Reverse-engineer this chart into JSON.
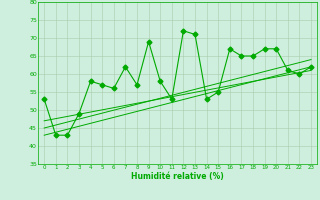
{
  "title": "",
  "xlabel": "Humidité relative (%)",
  "ylabel": "",
  "xlim": [
    -0.5,
    23.5
  ],
  "ylim": [
    35,
    80
  ],
  "yticks": [
    35,
    40,
    45,
    50,
    55,
    60,
    65,
    70,
    75,
    80
  ],
  "xticks": [
    0,
    1,
    2,
    3,
    4,
    5,
    6,
    7,
    8,
    9,
    10,
    11,
    12,
    13,
    14,
    15,
    16,
    17,
    18,
    19,
    20,
    21,
    22,
    23
  ],
  "bg_color": "#ceeede",
  "line_color": "#00aa00",
  "grid_color": "#aaccaa",
  "line1_x": [
    0,
    1,
    2,
    3,
    4,
    5,
    6,
    7,
    8,
    9,
    10,
    11,
    12,
    13,
    14,
    15,
    16,
    17,
    18,
    19,
    20,
    21,
    22,
    23
  ],
  "line1_y": [
    53,
    43,
    43,
    49,
    58,
    57,
    56,
    62,
    57,
    69,
    58,
    53,
    72,
    71,
    53,
    55,
    67,
    65,
    65,
    67,
    67,
    61,
    60,
    62
  ],
  "trend1_x": [
    0,
    23
  ],
  "trend1_y": [
    43,
    62
  ],
  "trend2_x": [
    0,
    23
  ],
  "trend2_y": [
    45,
    64
  ],
  "trend3_x": [
    0,
    23
  ],
  "trend3_y": [
    47,
    61
  ],
  "marker": "D",
  "marker_size": 2.5,
  "linewidth": 0.8
}
